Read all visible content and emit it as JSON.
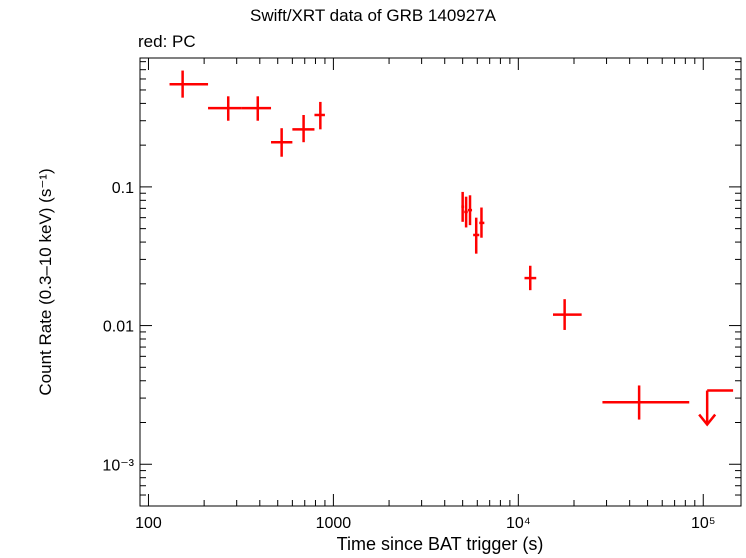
{
  "chart_data": {
    "type": "scatter",
    "title": "Swift/XRT data of GRB 140927A",
    "subtitle": "red: PC",
    "xlabel": "Time since BAT trigger (s)",
    "ylabel": "Count Rate (0.3–10 keV) (s⁻¹)",
    "xscale": "log",
    "yscale": "log",
    "xlim": [
      90,
      160000
    ],
    "ylim": [
      0.0005,
      0.85
    ],
    "grid": false,
    "color": "#ff0000",
    "x_ticks": [
      {
        "value": 100,
        "label": "100"
      },
      {
        "value": 1000,
        "label": "1000"
      },
      {
        "value": 10000,
        "label": "10⁴"
      },
      {
        "value": 100000,
        "label": "10⁵"
      }
    ],
    "y_ticks": [
      {
        "value": 0.1,
        "label": "0.1"
      },
      {
        "value": 0.01,
        "label": "0.01"
      },
      {
        "value": 0.001,
        "label": "10⁻³"
      }
    ],
    "series": [
      {
        "points": [
          {
            "x": 153,
            "xlo": 130,
            "xhi": 210,
            "y": 0.55,
            "ylo": 0.44,
            "yhi": 0.69
          },
          {
            "x": 270,
            "xlo": 210,
            "xhi": 320,
            "y": 0.37,
            "ylo": 0.3,
            "yhi": 0.45
          },
          {
            "x": 390,
            "xlo": 320,
            "xhi": 460,
            "y": 0.37,
            "ylo": 0.3,
            "yhi": 0.45
          },
          {
            "x": 525,
            "xlo": 460,
            "xhi": 600,
            "y": 0.21,
            "ylo": 0.165,
            "yhi": 0.265
          },
          {
            "x": 690,
            "xlo": 600,
            "xhi": 790,
            "y": 0.26,
            "ylo": 0.21,
            "yhi": 0.33
          },
          {
            "x": 850,
            "xlo": 790,
            "xhi": 900,
            "y": 0.33,
            "ylo": 0.26,
            "yhi": 0.41
          },
          {
            "x": 5000,
            "xlo": 4920,
            "xhi": 5090,
            "y": 0.072,
            "ylo": 0.056,
            "yhi": 0.092
          },
          {
            "x": 5220,
            "xlo": 5100,
            "xhi": 5330,
            "y": 0.066,
            "ylo": 0.051,
            "yhi": 0.085
          },
          {
            "x": 5480,
            "xlo": 5340,
            "xhi": 5620,
            "y": 0.068,
            "ylo": 0.053,
            "yhi": 0.087
          },
          {
            "x": 5920,
            "xlo": 5700,
            "xhi": 6150,
            "y": 0.045,
            "ylo": 0.033,
            "yhi": 0.06
          },
          {
            "x": 6320,
            "xlo": 6150,
            "xhi": 6550,
            "y": 0.055,
            "ylo": 0.043,
            "yhi": 0.071
          },
          {
            "x": 11600,
            "xlo": 10800,
            "xhi": 12500,
            "y": 0.022,
            "ylo": 0.018,
            "yhi": 0.027
          },
          {
            "x": 17800,
            "xlo": 15400,
            "xhi": 22000,
            "y": 0.012,
            "ylo": 0.0093,
            "yhi": 0.0155
          },
          {
            "x": 45000,
            "xlo": 28500,
            "xhi": 84000,
            "y": 0.0028,
            "ylo": 0.0021,
            "yhi": 0.0037
          }
        ],
        "upper_limits": [
          {
            "xlo": 105000,
            "xhi": 145000,
            "y": 0.0034
          }
        ]
      }
    ]
  }
}
